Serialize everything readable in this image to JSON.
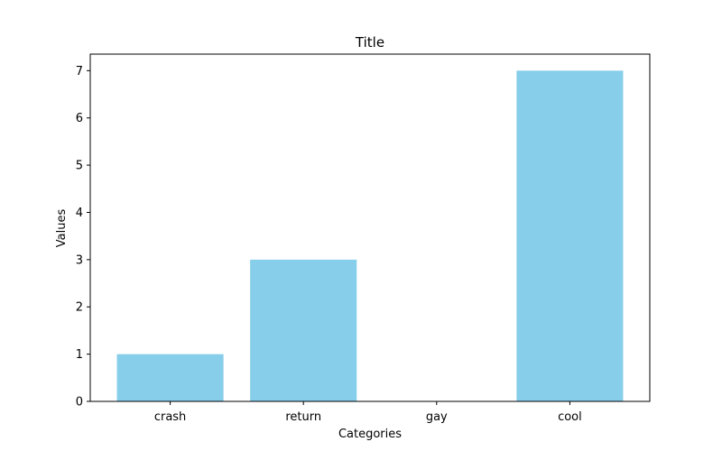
{
  "chart_data": {
    "type": "bar",
    "title": "Title",
    "xlabel": "Categories",
    "ylabel": "Values",
    "categories": [
      "crash",
      "return",
      "gay",
      "cool"
    ],
    "values": [
      1,
      3,
      0,
      7
    ],
    "ylim": [
      0,
      7.35
    ],
    "yticks": [
      "0",
      "1",
      "2",
      "3",
      "4",
      "5",
      "6",
      "7"
    ],
    "bar_color": "#87ceeb",
    "grid": false,
    "legend": "none"
  }
}
